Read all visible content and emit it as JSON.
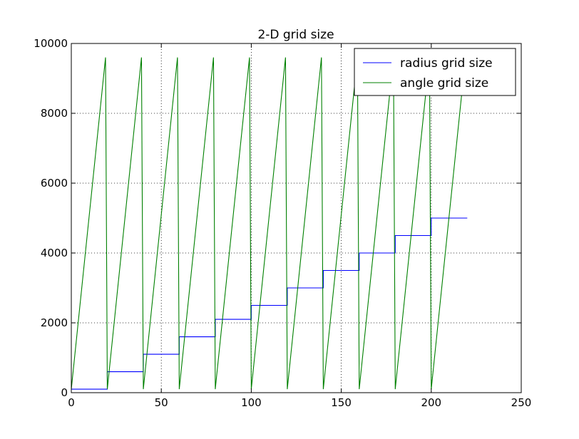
{
  "chart_data": {
    "type": "line",
    "title": "2-D grid size",
    "xlabel": "",
    "ylabel": "",
    "xlim": [
      0,
      250
    ],
    "ylim": [
      0,
      10000
    ],
    "xticks": [
      0,
      50,
      100,
      150,
      200,
      250
    ],
    "yticks": [
      0,
      2000,
      4000,
      6000,
      8000,
      10000
    ],
    "grid": true,
    "legend_position": "top-right",
    "series": [
      {
        "name": "radius grid size",
        "color": "#0000ff",
        "x": [
          0,
          20,
          20,
          40,
          40,
          60,
          60,
          80,
          80,
          100,
          100,
          120,
          120,
          140,
          140,
          160,
          160,
          180,
          180,
          200,
          200,
          220
        ],
        "y": [
          100,
          100,
          600,
          600,
          1100,
          1100,
          1600,
          1600,
          2100,
          2100,
          2500,
          2500,
          3000,
          3000,
          3500,
          3500,
          4000,
          4000,
          4500,
          4500,
          5000,
          5000
        ]
      },
      {
        "name": "angle grid size",
        "color": "#008000",
        "x": [
          0,
          19,
          20,
          39,
          40,
          59,
          60,
          79,
          80,
          99,
          100,
          119,
          120,
          139,
          140,
          159,
          160,
          179,
          180,
          199,
          200,
          219
        ],
        "y": [
          100,
          9600,
          100,
          9600,
          100,
          9600,
          100,
          9600,
          100,
          9600,
          100,
          9600,
          100,
          9600,
          100,
          9600,
          100,
          9600,
          100,
          9600,
          100,
          9600
        ]
      }
    ]
  }
}
